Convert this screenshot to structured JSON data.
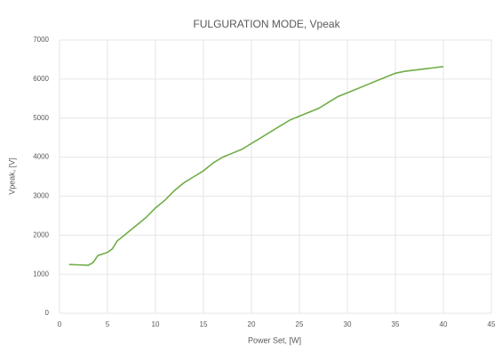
{
  "chart_data": {
    "type": "line",
    "title": "FULGURATION MODE, Vpeak",
    "xlabel": "Power Set, [W]",
    "ylabel": "Vpeak, [V]",
    "x": [
      1,
      2,
      3,
      3.5,
      4,
      5,
      5.5,
      6,
      7,
      8,
      9,
      10,
      11,
      12,
      13,
      14,
      15,
      16,
      17,
      18,
      19,
      20,
      21,
      22,
      23,
      24,
      25,
      26,
      27,
      28,
      29,
      30,
      31,
      32,
      33,
      34,
      35,
      36,
      37,
      38,
      39,
      40
    ],
    "series": [
      {
        "name": "Vpeak",
        "color": "#70ad47",
        "values": [
          1250,
          1240,
          1230,
          1300,
          1480,
          1560,
          1650,
          1850,
          2050,
          2250,
          2450,
          2700,
          2900,
          3150,
          3350,
          3500,
          3650,
          3850,
          4000,
          4100,
          4200,
          4350,
          4500,
          4650,
          4800,
          4950,
          5050,
          5150,
          5250,
          5400,
          5550,
          5650,
          5750,
          5850,
          5950,
          6050,
          6150,
          6200,
          6230,
          6260,
          6290,
          6320
        ]
      }
    ],
    "xlim": [
      0,
      45
    ],
    "xticks": [
      0,
      5,
      10,
      15,
      20,
      25,
      30,
      35,
      40,
      45
    ],
    "ylim": [
      0,
      7000
    ],
    "yticks": [
      0,
      1000,
      2000,
      3000,
      4000,
      5000,
      6000,
      7000
    ],
    "grid": true
  }
}
